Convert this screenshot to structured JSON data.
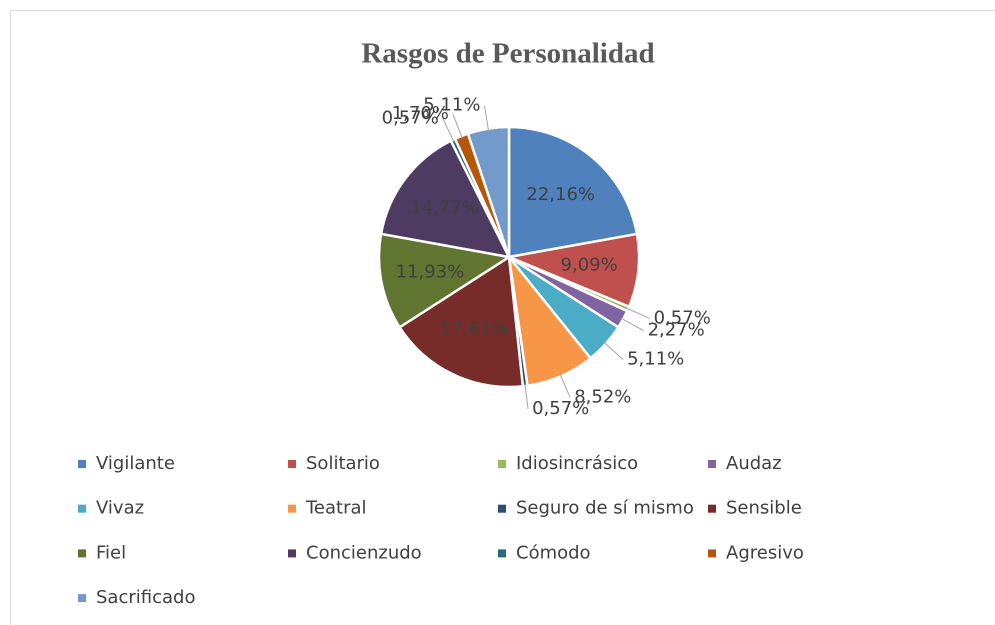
{
  "chart_data": {
    "type": "pie",
    "title": "Rasgos de Personalidad",
    "categories": [
      "Vigilante",
      "Solitario",
      "Idiosincrásico",
      "Audaz",
      "Vivaz",
      "Teatral",
      "Seguro de sí mismo",
      "Sensible",
      "Fiel",
      "Concienzudo",
      "Cómodo",
      "Agresivo",
      "Sacrificado"
    ],
    "values": [
      22.16,
      9.09,
      0.57,
      2.27,
      5.11,
      8.52,
      0.57,
      17.61,
      11.93,
      14.77,
      0.57,
      1.7,
      5.11
    ],
    "value_labels": [
      "22,16%",
      "9,09%",
      "0,57%",
      "2,27%",
      "5,11%",
      "8,52%",
      "0,57%",
      "17,61%",
      "11,93%",
      "14,77%",
      "0,57%",
      "1,70%",
      "5,11%"
    ],
    "colors": [
      "#4f81bd",
      "#c0504d",
      "#9bbb59",
      "#8064a2",
      "#4bacc6",
      "#f79646",
      "#2c4d75",
      "#772c2a",
      "#5f7530",
      "#4d3b62",
      "#276a7c",
      "#b65708",
      "#729aca"
    ],
    "legend": "bottom"
  }
}
